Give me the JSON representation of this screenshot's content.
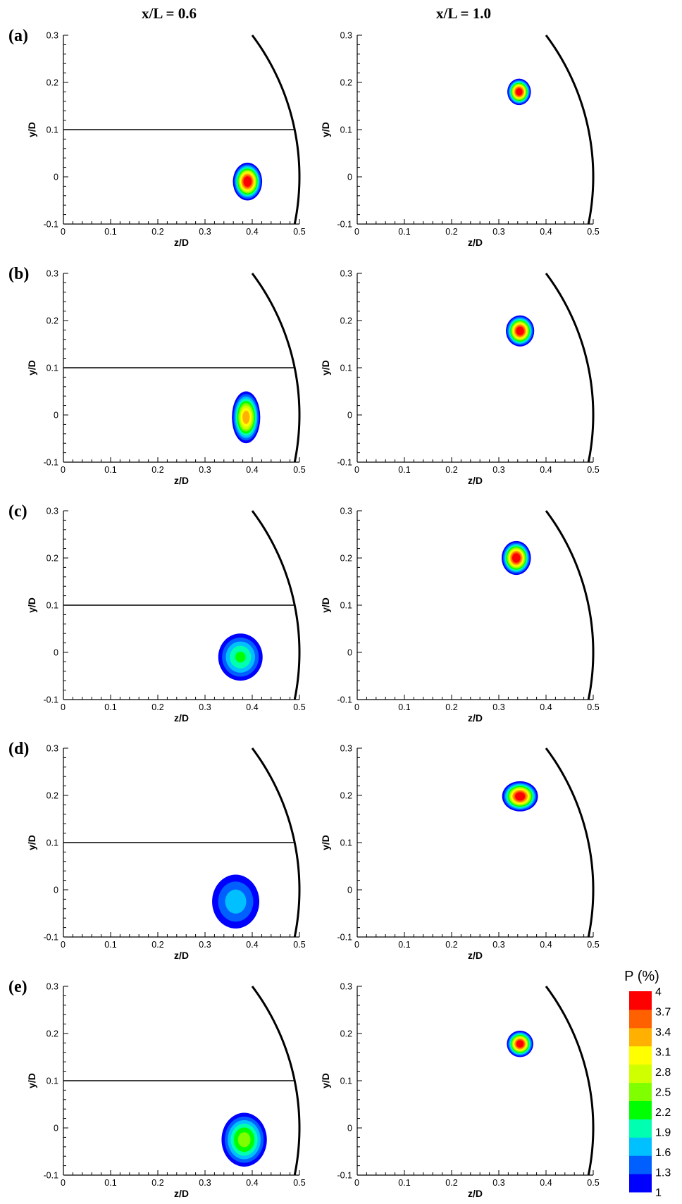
{
  "column_titles": [
    "x/L = 0.6",
    "x/L = 1.0"
  ],
  "row_labels": [
    "(a)",
    "(b)",
    "(c)",
    "(d)",
    "(e)"
  ],
  "chart_data": {
    "type": "heatmap",
    "xlabel": "z/D",
    "ylabel": "y/D",
    "xlim": [
      0,
      0.5
    ],
    "ylim": [
      -0.1,
      0.3
    ],
    "xticks": [
      "0",
      "0.1",
      "0.2",
      "0.3",
      "0.4",
      "0.5"
    ],
    "yticks": [
      "-0.1",
      "0",
      "0.1",
      "0.2",
      "0.3"
    ],
    "colorbar": {
      "title": "P (%)",
      "levels": [
        "4",
        "3.7",
        "3.4",
        "3.1",
        "2.8",
        "2.5",
        "2.2",
        "1.9",
        "1.6",
        "1.3",
        "1"
      ],
      "colors": [
        "#0000ff",
        "#0060ff",
        "#00c0ff",
        "#00ffb0",
        "#00ff00",
        "#80ff00",
        "#d0ff00",
        "#ffff00",
        "#ffb000",
        "#ff6000",
        "#ff0000"
      ]
    },
    "panels": [
      {
        "row": "(a)",
        "column": "x/L = 0.6",
        "horizontal_line_y": 0.1,
        "blob": {
          "z": 0.39,
          "y": -0.01,
          "rz": 0.031,
          "ry": 0.04,
          "peak": 4.5
        }
      },
      {
        "row": "(a)",
        "column": "x/L = 1.0",
        "blob": {
          "z": 0.343,
          "y": 0.18,
          "rz": 0.025,
          "ry": 0.028,
          "peak": 4.5
        }
      },
      {
        "row": "(b)",
        "column": "x/L = 0.6",
        "horizontal_line_y": 0.1,
        "blob": {
          "z": 0.387,
          "y": -0.005,
          "rz": 0.03,
          "ry": 0.055,
          "peak": 3.7
        }
      },
      {
        "row": "(b)",
        "column": "x/L = 1.0",
        "blob": {
          "z": 0.345,
          "y": 0.178,
          "rz": 0.03,
          "ry": 0.033,
          "peak": 4.5
        }
      },
      {
        "row": "(c)",
        "column": "x/L = 0.6",
        "horizontal_line_y": 0.1,
        "blob": {
          "z": 0.375,
          "y": -0.01,
          "rz": 0.047,
          "ry": 0.05,
          "peak": 2.3
        }
      },
      {
        "row": "(c)",
        "column": "x/L = 1.0",
        "blob": {
          "z": 0.337,
          "y": 0.2,
          "rz": 0.031,
          "ry": 0.036,
          "peak": 4.5
        }
      },
      {
        "row": "(d)",
        "column": "x/L = 0.6",
        "horizontal_line_y": 0.1,
        "blob": {
          "z": 0.365,
          "y": -0.025,
          "rz": 0.05,
          "ry": 0.057,
          "peak": 1.8
        }
      },
      {
        "row": "(d)",
        "column": "x/L = 1.0",
        "blob": {
          "z": 0.345,
          "y": 0.198,
          "rz": 0.038,
          "ry": 0.032,
          "peak": 4.5
        }
      },
      {
        "row": "(e)",
        "column": "x/L = 0.6",
        "horizontal_line_y": 0.1,
        "blob": {
          "z": 0.383,
          "y": -0.025,
          "rz": 0.048,
          "ry": 0.057,
          "peak": 2.7
        }
      },
      {
        "row": "(e)",
        "column": "x/L = 1.0",
        "blob": {
          "z": 0.345,
          "y": 0.178,
          "rz": 0.028,
          "ry": 0.028,
          "peak": 4.5
        }
      }
    ]
  }
}
